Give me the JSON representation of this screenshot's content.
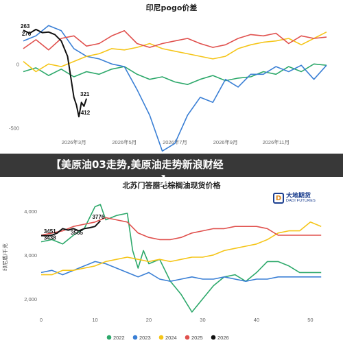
{
  "banner": {
    "headline": "【美原油03走势,美原油走势新浪财经",
    "continued": "】"
  },
  "logo": {
    "cn": "大地期货",
    "en": "DADI FUTURES",
    "mark": "D"
  },
  "colors": {
    "2022": "#2ca86a",
    "2023": "#3a7fd5",
    "2024": "#f5c518",
    "2025": "#e0504d",
    "2026": "#111111"
  },
  "chart_data": [
    {
      "type": "line",
      "title": "印尼pogo价差",
      "xlabel": "",
      "ylabel": "",
      "ylim": [
        -550,
        350
      ],
      "yticks": [
        "0",
        "-500"
      ],
      "ytick_values": [
        0,
        -500
      ],
      "xticks": [
        "2026年3月",
        "2026年5月",
        "2026年7月",
        "2026年9月",
        "2026年11月"
      ],
      "x_range_months": [
        1,
        13
      ],
      "xtick_positions": [
        3,
        5,
        7,
        9,
        11
      ],
      "grid": false,
      "annotations": [
        {
          "text": "263",
          "x": 1.0,
          "y": 263
        },
        {
          "text": "276",
          "x": 1.05,
          "y": 205
        },
        {
          "text": "321",
          "x": 3.2,
          "y": -265
        },
        {
          "text": "-412",
          "x": 3.15,
          "y": -412
        }
      ],
      "series": [
        {
          "color": "#2ca86a",
          "x": [
            1,
            1.5,
            2,
            2.5,
            3,
            3.5,
            4,
            4.5,
            5,
            5.5,
            6,
            6.5,
            7,
            7.5,
            8,
            8.5,
            9,
            9.5,
            10,
            10.5,
            11,
            11.5,
            12,
            12.5,
            13
          ],
          "values": [
            -60,
            -30,
            -90,
            -40,
            -100,
            -60,
            -80,
            -40,
            -20,
            -80,
            -120,
            -100,
            -140,
            -160,
            -120,
            -90,
            -130,
            -110,
            -100,
            -60,
            -80,
            -20,
            -60,
            0,
            -10
          ]
        },
        {
          "color": "#3a7fd5",
          "x": [
            1,
            1.5,
            2,
            2.5,
            3,
            3.5,
            4,
            4.5,
            5,
            5.5,
            6,
            6.5,
            7,
            7.5,
            8,
            8.5,
            9,
            9.5,
            10,
            10.5,
            11,
            11.5,
            12,
            12.5,
            13
          ],
          "values": [
            180,
            220,
            300,
            260,
            120,
            60,
            40,
            0,
            -20,
            -200,
            -400,
            -680,
            -620,
            -400,
            -260,
            -300,
            -120,
            -180,
            -80,
            -80,
            -20,
            -60,
            -10,
            -120,
            -10
          ]
        },
        {
          "color": "#f5c518",
          "x": [
            1,
            1.5,
            2,
            2.5,
            3,
            3.5,
            4,
            4.5,
            5,
            5.5,
            6,
            6.5,
            7,
            7.5,
            8,
            8.5,
            9,
            9.5,
            10,
            10.5,
            11,
            11.5,
            12,
            12.5,
            13
          ],
          "values": [
            20,
            -60,
            0,
            -20,
            20,
            60,
            80,
            120,
            110,
            130,
            160,
            120,
            100,
            80,
            60,
            40,
            60,
            120,
            150,
            170,
            180,
            200,
            150,
            200,
            250
          ]
        },
        {
          "color": "#e0504d",
          "x": [
            1,
            1.5,
            2,
            2.5,
            3,
            3.5,
            4,
            4.5,
            5,
            5.5,
            6,
            6.5,
            7,
            7.5,
            8,
            8.5,
            9,
            9.5,
            10,
            10.5,
            11,
            11.5,
            12,
            12.5,
            13
          ],
          "values": [
            120,
            190,
            110,
            200,
            220,
            140,
            160,
            220,
            260,
            160,
            130,
            160,
            180,
            200,
            160,
            130,
            150,
            200,
            230,
            220,
            240,
            160,
            220,
            200,
            210
          ]
        },
        {
          "color": "#111111",
          "x": [
            1,
            1.25,
            1.5,
            1.75,
            2,
            2.25,
            2.5,
            2.75,
            3,
            3.1,
            3.2,
            3.3,
            3.4,
            3.5
          ],
          "values": [
            263,
            240,
            270,
            245,
            250,
            230,
            180,
            60,
            -260,
            -320,
            -412,
            -300,
            -330,
            -270
          ]
        }
      ]
    },
    {
      "type": "line",
      "title": "北苏门答腊毛棕榈油现货价格",
      "xlabel": "",
      "ylabel": "印尼盾/千克",
      "ylim": [
        1700,
        4200
      ],
      "yticks": [
        "4,000",
        "3,000",
        "2,000"
      ],
      "ytick_values": [
        4000,
        3000,
        2000
      ],
      "xticks": [
        "0",
        "10",
        "20",
        "30",
        "40",
        "50"
      ],
      "xtick_values": [
        0,
        10,
        20,
        30,
        40,
        50
      ],
      "xlim": [
        0,
        53
      ],
      "grid": false,
      "legend": [
        "2022",
        "2023",
        "2024",
        "2025",
        "2026"
      ],
      "legend_position": "bottom",
      "annotations": [
        {
          "text": "3451",
          "x": 1,
          "y": 3451
        },
        {
          "text": "3438",
          "x": 1,
          "y": 3300
        },
        {
          "text": "3565",
          "x": 6,
          "y": 3420
        },
        {
          "text": "3776",
          "x": 10,
          "y": 3776
        }
      ],
      "series": [
        {
          "name": "2022",
          "color": "#2ca86a",
          "x": [
            0,
            2,
            4,
            6,
            8,
            10,
            11,
            12,
            14,
            16,
            17,
            18,
            19,
            20,
            22,
            24,
            26,
            28,
            30,
            32,
            34,
            36,
            38,
            40,
            42,
            44,
            46,
            48,
            50,
            52
          ],
          "values": [
            3300,
            3350,
            3250,
            3450,
            3600,
            4100,
            4150,
            3800,
            3900,
            3950,
            3100,
            2700,
            3100,
            2800,
            2900,
            2400,
            2100,
            1700,
            2000,
            2300,
            2500,
            2550,
            2400,
            2600,
            2850,
            2850,
            2750,
            2600,
            2600,
            2600
          ]
        },
        {
          "name": "2023",
          "color": "#3a7fd5",
          "x": [
            0,
            2,
            4,
            6,
            8,
            10,
            12,
            14,
            16,
            18,
            20,
            22,
            24,
            26,
            28,
            30,
            32,
            34,
            36,
            38,
            40,
            42,
            44,
            46,
            48,
            50,
            52
          ],
          "values": [
            2600,
            2650,
            2550,
            2650,
            2750,
            2850,
            2800,
            2700,
            2600,
            2500,
            2600,
            2450,
            2400,
            2450,
            2500,
            2450,
            2450,
            2500,
            2450,
            2400,
            2450,
            2450,
            2500,
            2500,
            2500,
            2500,
            2500
          ]
        },
        {
          "name": "2024",
          "color": "#f5c518",
          "x": [
            0,
            2,
            4,
            6,
            8,
            10,
            12,
            14,
            16,
            18,
            20,
            22,
            24,
            26,
            28,
            30,
            32,
            34,
            36,
            38,
            40,
            42,
            44,
            46,
            48,
            50,
            52
          ],
          "values": [
            2550,
            2550,
            2650,
            2650,
            2700,
            2750,
            2850,
            2900,
            2950,
            2900,
            2850,
            2900,
            2850,
            2900,
            2950,
            2950,
            3000,
            3100,
            3150,
            3200,
            3250,
            3350,
            3500,
            3550,
            3550,
            3750,
            3650
          ]
        },
        {
          "name": "2025",
          "color": "#e0504d",
          "x": [
            0,
            2,
            4,
            6,
            8,
            10,
            12,
            14,
            16,
            18,
            20,
            22,
            24,
            26,
            28,
            30,
            32,
            34,
            36,
            38,
            40,
            42,
            44,
            46,
            48,
            50,
            52
          ],
          "values": [
            3450,
            3500,
            3550,
            3650,
            3700,
            3750,
            3850,
            3800,
            3750,
            3500,
            3400,
            3350,
            3350,
            3400,
            3500,
            3550,
            3600,
            3600,
            3650,
            3650,
            3650,
            3600,
            3450,
            3450,
            3450,
            3450,
            3450
          ]
        },
        {
          "name": "2026",
          "color": "#111111",
          "x": [
            0,
            1,
            2,
            3,
            4,
            5,
            6,
            7,
            8,
            9,
            10,
            11
          ],
          "values": [
            3440,
            3438,
            3451,
            3500,
            3600,
            3565,
            3600,
            3550,
            3600,
            3620,
            3650,
            3776
          ]
        }
      ]
    }
  ]
}
